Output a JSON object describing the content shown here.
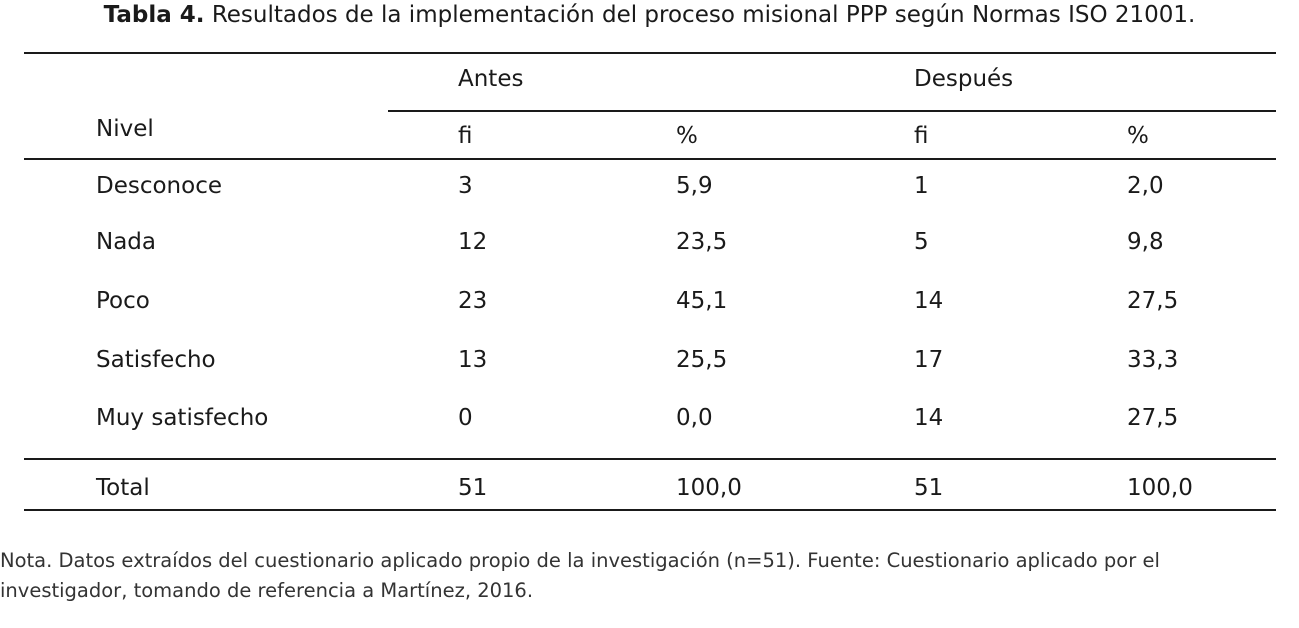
{
  "caption": {
    "label": "Tabla 4.",
    "text": " Resultados de la implementación del proceso misional PPP según Normas ISO 21001."
  },
  "table": {
    "row_header": "Nivel",
    "groups": [
      "Antes",
      "Después"
    ],
    "subheaders": [
      "fi",
      "%",
      "fi",
      "%"
    ],
    "rows": [
      {
        "nivel": "Desconoce",
        "values": [
          "3",
          "5,9",
          "1",
          "2,0"
        ]
      },
      {
        "nivel": "Nada",
        "values": [
          "12",
          "23,5",
          "5",
          "9,8"
        ]
      },
      {
        "nivel": "Poco",
        "values": [
          "23",
          "45,1",
          "14",
          "27,5"
        ]
      },
      {
        "nivel": "Satisfecho",
        "values": [
          "13",
          "25,5",
          "17",
          "33,3"
        ]
      },
      {
        "nivel": "Muy satisfecho",
        "values": [
          "0",
          "0,0",
          "14",
          "27,5"
        ]
      }
    ],
    "total": {
      "nivel": "Total",
      "values": [
        "51",
        "100,0",
        "51",
        "100,0"
      ]
    }
  },
  "note": {
    "line1": "Nota. Datos extraídos del cuestionario aplicado propio de la investigación (n=51). Fuente: Cuestionario aplicado por el",
    "line2": "investigador, tomando de referencia a Martínez, 2016."
  }
}
